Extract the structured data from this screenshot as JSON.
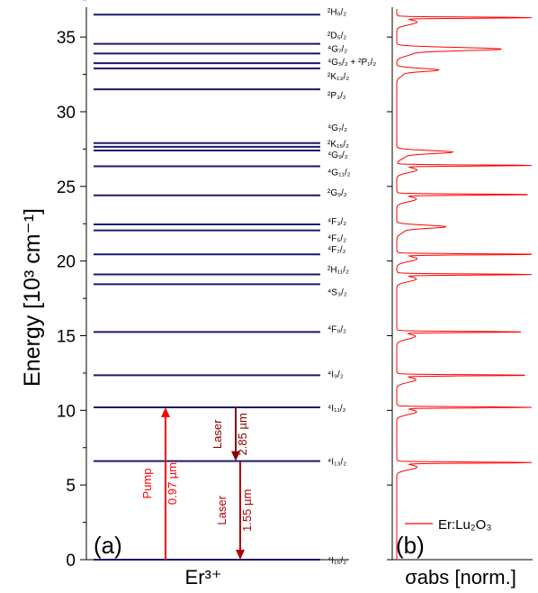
{
  "chart_data": {
    "type": "energy_level_diagram",
    "ylabel": "Energy [10³ cm⁻¹]",
    "ylim": [
      0,
      37
    ],
    "yticks": [
      0,
      5,
      10,
      15,
      20,
      25,
      30,
      35
    ],
    "panel_a": {
      "label": "(a)",
      "xlabel": "Er³⁺",
      "levels": [
        {
          "term": "⁴I₁₅/₂",
          "energy": 0
        },
        {
          "term": "⁴I₁₃/₂",
          "energy": 6.6
        },
        {
          "term": "⁴I₁₁/₂",
          "energy": 10.2
        },
        {
          "term": "⁴I₉/₂",
          "energy": 12.35
        },
        {
          "term": "⁴F₉/₂",
          "energy": 15.25
        },
        {
          "term": "⁴S₃/₂",
          "energy": 18.45
        },
        {
          "term": "²H₁₁/₂",
          "energy": 19.1
        },
        {
          "term": "⁴F₇/₂",
          "energy": 20.45
        },
        {
          "term": "⁴F₅/₂",
          "energy": 22.05
        },
        {
          "term": "⁴F₃/₂",
          "energy": 22.45
        },
        {
          "term": "²G₉/₂",
          "energy": 24.4
        },
        {
          "term": "⁴G₁₁/₂",
          "energy": 26.35
        },
        {
          "term": "⁴G₉/₂",
          "energy": 27.4
        },
        {
          "term": "²K₁₅/₂",
          "energy": 27.65
        },
        {
          "term": "⁴G₇/₂",
          "energy": 27.9
        },
        {
          "term": "²P₃/₂",
          "energy": 31.5
        },
        {
          "term": "²K₁₃/₂",
          "energy": 32.9
        },
        {
          "term": "⁴G₅/₂ + ²P₁/₂",
          "energy": 33.25
        },
        {
          "term": "⁴G₇/₂",
          "energy": 33.9
        },
        {
          "term": "²D₅/₂",
          "energy": 34.55
        },
        {
          "term": "²H₉/₂",
          "energy": 36.5
        }
      ],
      "transitions": [
        {
          "name": "Pump",
          "wavelength": "0.97 µm",
          "from": 0,
          "to": 10.2,
          "color": "#ff0000"
        },
        {
          "name": "Laser",
          "wavelength": "2.85 µm",
          "from": 10.2,
          "to": 6.6,
          "color": "#8b0000"
        },
        {
          "name": "Laser",
          "wavelength": "1.55 µm",
          "from": 6.6,
          "to": 0,
          "color": "#b00000"
        }
      ]
    },
    "panel_b": {
      "label": "(b)",
      "xlabel": "σabs [norm.]",
      "legend": "Er:Lu₂O₃",
      "legend_position": "bottom-right",
      "series_color": "#ff0000",
      "peaks": [
        {
          "energy": 6.5,
          "value": 1.0
        },
        {
          "energy": 10.2,
          "value": 0.98
        },
        {
          "energy": 12.35,
          "value": 0.95
        },
        {
          "energy": 15.25,
          "value": 0.92
        },
        {
          "energy": 19.1,
          "value": 0.97
        },
        {
          "energy": 20.45,
          "value": 1.0
        },
        {
          "energy": 22.3,
          "value": 0.35
        },
        {
          "energy": 24.45,
          "value": 0.97
        },
        {
          "energy": 26.4,
          "value": 1.0
        },
        {
          "energy": 27.3,
          "value": 0.4
        },
        {
          "energy": 32.8,
          "value": 0.3
        },
        {
          "energy": 34.2,
          "value": 0.75
        },
        {
          "energy": 36.3,
          "value": 1.0
        }
      ]
    }
  }
}
